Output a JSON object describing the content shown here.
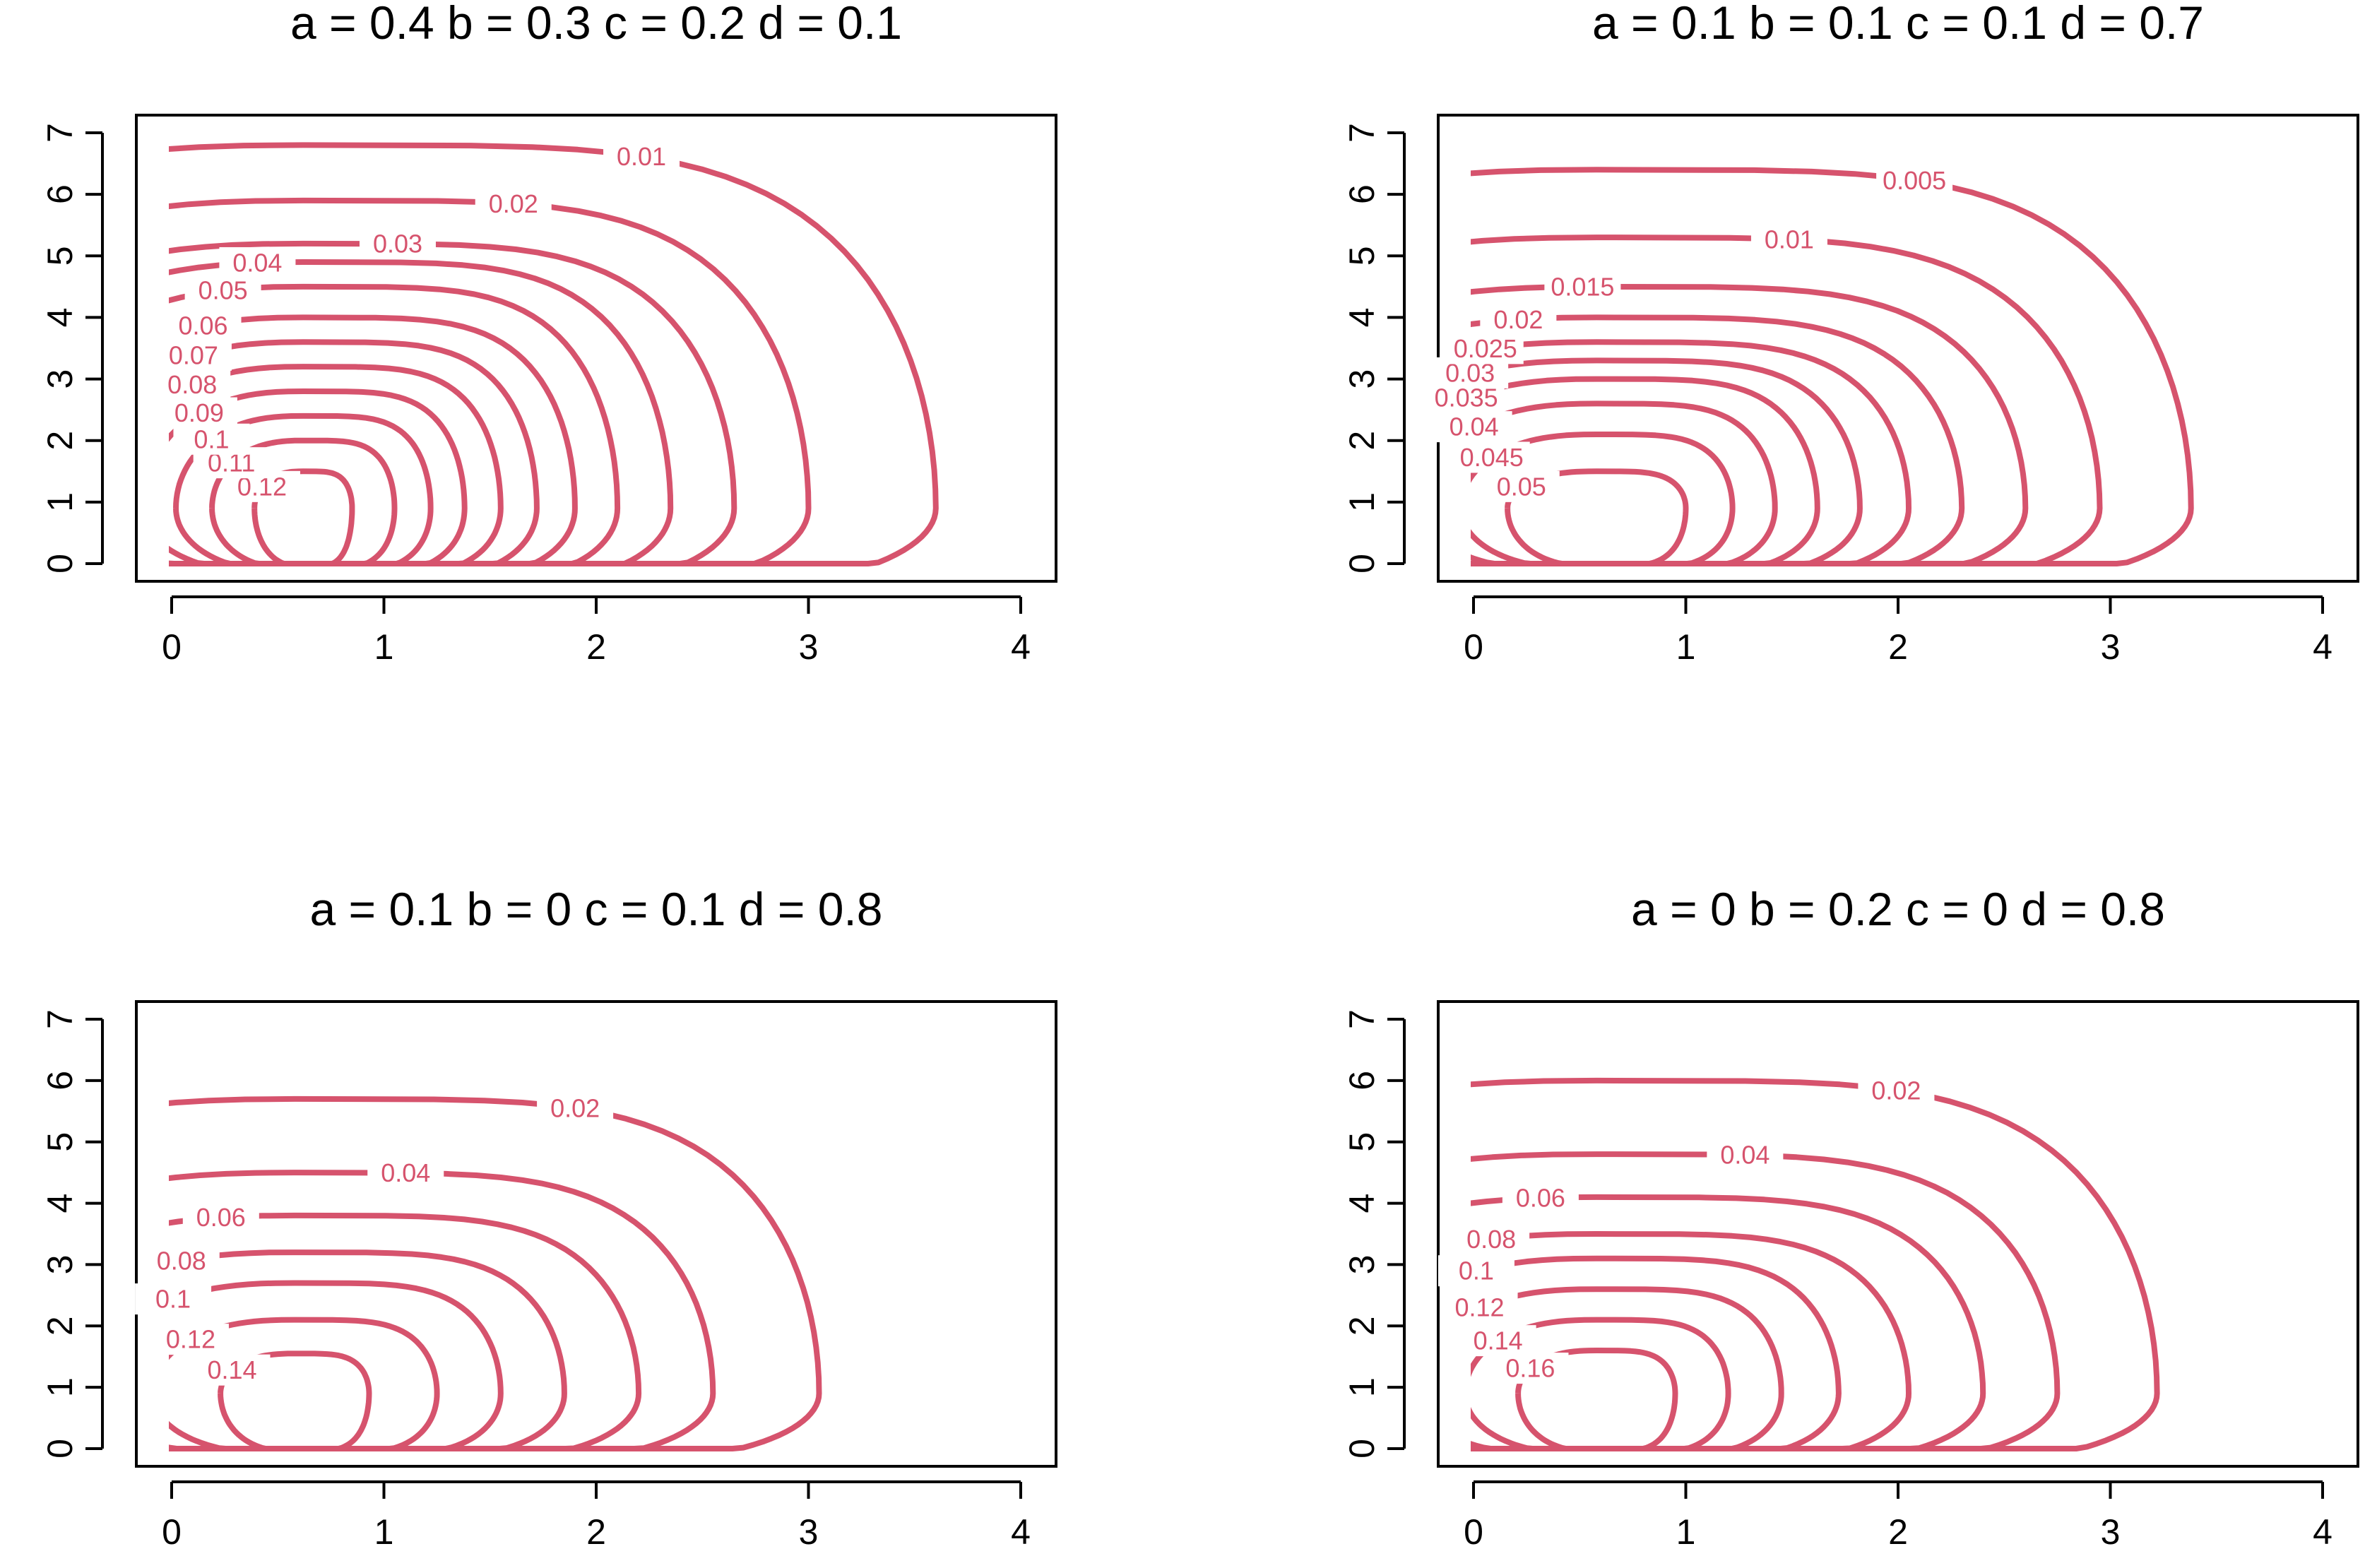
{
  "figure": {
    "line_color": "#d6536d",
    "chart_data": [
      {
        "type": "contour",
        "title": "a = 0.4 b = 0.3 c = 0.2 d = 0.1",
        "xlabel": "",
        "ylabel": "",
        "xlim": [
          0,
          4
        ],
        "ylim": [
          0,
          7
        ],
        "xticks": [
          "0",
          "1",
          "2",
          "3",
          "4"
        ],
        "yticks": [
          "0",
          "1",
          "2",
          "3",
          "4",
          "5",
          "6",
          "7"
        ],
        "center": [
          0.62,
          0.9
        ],
        "grid": false,
        "levels": [
          {
            "label": "0.12",
            "xmax": 0.85,
            "ytop": 1.5
          },
          {
            "label": "0.11",
            "xmax": 1.05,
            "ytop": 2.0
          },
          {
            "label": "0.1",
            "xmax": 1.22,
            "ytop": 2.4
          },
          {
            "label": "0.09",
            "xmax": 1.38,
            "ytop": 2.8
          },
          {
            "label": "0.08",
            "xmax": 1.55,
            "ytop": 3.2
          },
          {
            "label": "0.07",
            "xmax": 1.72,
            "ytop": 3.6
          },
          {
            "label": "0.06",
            "xmax": 1.9,
            "ytop": 4.0
          },
          {
            "label": "0.05",
            "xmax": 2.1,
            "ytop": 4.5
          },
          {
            "label": "0.04",
            "xmax": 2.35,
            "ytop": 4.9
          },
          {
            "label": "0.03",
            "xmax": 2.65,
            "ytop": 5.2
          },
          {
            "label": "0.02",
            "xmax": 3.0,
            "ytop": 5.9
          },
          {
            "label": "0.01",
            "xmax": 3.6,
            "ytop": 6.8
          }
        ]
      },
      {
        "type": "contour",
        "title": "a = 0.1 b = 0.1 c = 0.1 d = 0.7",
        "xlabel": "",
        "ylabel": "",
        "xlim": [
          0,
          4
        ],
        "ylim": [
          0,
          7
        ],
        "xticks": [
          "0",
          "1",
          "2",
          "3",
          "4"
        ],
        "yticks": [
          "0",
          "1",
          "2",
          "3",
          "4",
          "5",
          "6",
          "7"
        ],
        "center": [
          0.58,
          0.9
        ],
        "grid": false,
        "levels": [
          {
            "label": "0.05",
            "xmax": 1.0,
            "ytop": 1.5
          },
          {
            "label": "0.045",
            "xmax": 1.22,
            "ytop": 2.1
          },
          {
            "label": "0.04",
            "xmax": 1.42,
            "ytop": 2.6
          },
          {
            "label": "0.035",
            "xmax": 1.62,
            "ytop": 3.0
          },
          {
            "label": "0.03",
            "xmax": 1.82,
            "ytop": 3.3
          },
          {
            "label": "0.025",
            "xmax": 2.05,
            "ytop": 3.6
          },
          {
            "label": "0.02",
            "xmax": 2.3,
            "ytop": 4.0
          },
          {
            "label": "0.015",
            "xmax": 2.6,
            "ytop": 4.5
          },
          {
            "label": "0.01",
            "xmax": 2.95,
            "ytop": 5.3
          },
          {
            "label": "0.005",
            "xmax": 3.38,
            "ytop": 6.4
          }
        ]
      },
      {
        "type": "contour",
        "title": "a = 0.1 b = 0 c = 0.1 d = 0.8",
        "xlabel": "",
        "ylabel": "",
        "xlim": [
          0,
          4
        ],
        "ylim": [
          0,
          7
        ],
        "xticks": [
          "0",
          "1",
          "2",
          "3",
          "4"
        ],
        "yticks": [
          "0",
          "1",
          "2",
          "3",
          "4",
          "5",
          "6",
          "7"
        ],
        "center": [
          0.58,
          0.9
        ],
        "grid": false,
        "levels": [
          {
            "label": "0.14",
            "xmax": 0.93,
            "ytop": 1.55
          },
          {
            "label": "0.12",
            "xmax": 1.25,
            "ytop": 2.1
          },
          {
            "label": "0.1",
            "xmax": 1.55,
            "ytop": 2.7
          },
          {
            "label": "0.08",
            "xmax": 1.85,
            "ytop": 3.2
          },
          {
            "label": "0.06",
            "xmax": 2.2,
            "ytop": 3.8
          },
          {
            "label": "0.04",
            "xmax": 2.55,
            "ytop": 4.5
          },
          {
            "label": "0.02",
            "xmax": 3.05,
            "ytop": 5.7
          }
        ]
      },
      {
        "type": "contour",
        "title": "a = 0 b = 0.2 c = 0 d = 0.8",
        "xlabel": "",
        "ylabel": "",
        "xlim": [
          0,
          4
        ],
        "ylim": [
          0,
          7
        ],
        "xticks": [
          "0",
          "1",
          "2",
          "3",
          "4"
        ],
        "yticks": [
          "0",
          "1",
          "2",
          "3",
          "4",
          "5",
          "6",
          "7"
        ],
        "center": [
          0.58,
          0.9
        ],
        "grid": false,
        "levels": [
          {
            "label": "0.16",
            "xmax": 0.95,
            "ytop": 1.6
          },
          {
            "label": "0.14",
            "xmax": 1.2,
            "ytop": 2.1
          },
          {
            "label": "0.12",
            "xmax": 1.45,
            "ytop": 2.6
          },
          {
            "label": "0.1",
            "xmax": 1.72,
            "ytop": 3.1
          },
          {
            "label": "0.08",
            "xmax": 2.05,
            "ytop": 3.5
          },
          {
            "label": "0.06",
            "xmax": 2.4,
            "ytop": 4.1
          },
          {
            "label": "0.04",
            "xmax": 2.75,
            "ytop": 4.8
          },
          {
            "label": "0.02",
            "xmax": 3.22,
            "ytop": 6.0
          }
        ]
      }
    ]
  }
}
